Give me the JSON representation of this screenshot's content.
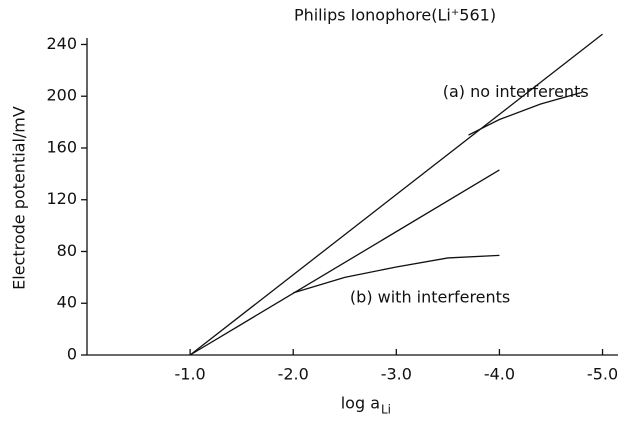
{
  "chart_data": {
    "type": "line",
    "title": "Philips Ionophore(Li⁺561)",
    "ylabel": "Electrode potential/mV",
    "xlabel": "log a",
    "xlabel_sub": "Li",
    "xlim": [
      0,
      -5.15
    ],
    "ylim": [
      0,
      245
    ],
    "xticks": [
      {
        "value": -1,
        "label": "-1.0"
      },
      {
        "value": -2,
        "label": "-2.0"
      },
      {
        "value": -3,
        "label": "-3.0"
      },
      {
        "value": -4,
        "label": "-4.0"
      },
      {
        "value": -5,
        "label": "-5.0"
      }
    ],
    "yticks": [
      0,
      40,
      80,
      120,
      160,
      200,
      240
    ],
    "series": [
      {
        "color": "#000000",
        "x": [
          -1.0,
          -5.0
        ],
        "y": [
          0,
          248
        ]
      },
      {
        "color": "#000000",
        "x": [
          -3.7,
          -4.0,
          -4.4,
          -4.8
        ],
        "y": [
          170,
          182,
          194,
          203
        ]
      },
      {
        "color": "#000000",
        "x": [
          -1.0,
          -4.0
        ],
        "y": [
          0,
          143
        ]
      },
      {
        "color": "#000000",
        "x": [
          -2.0,
          -2.5,
          -3.0,
          -3.5,
          -4.0
        ],
        "y": [
          48,
          60,
          68,
          75,
          77
        ]
      }
    ],
    "annotations": [
      {
        "text": "(a) no interferents",
        "x": -3.45,
        "y": 203
      },
      {
        "text": "(b) with interferents",
        "x": -2.55,
        "y": 44
      }
    ]
  }
}
